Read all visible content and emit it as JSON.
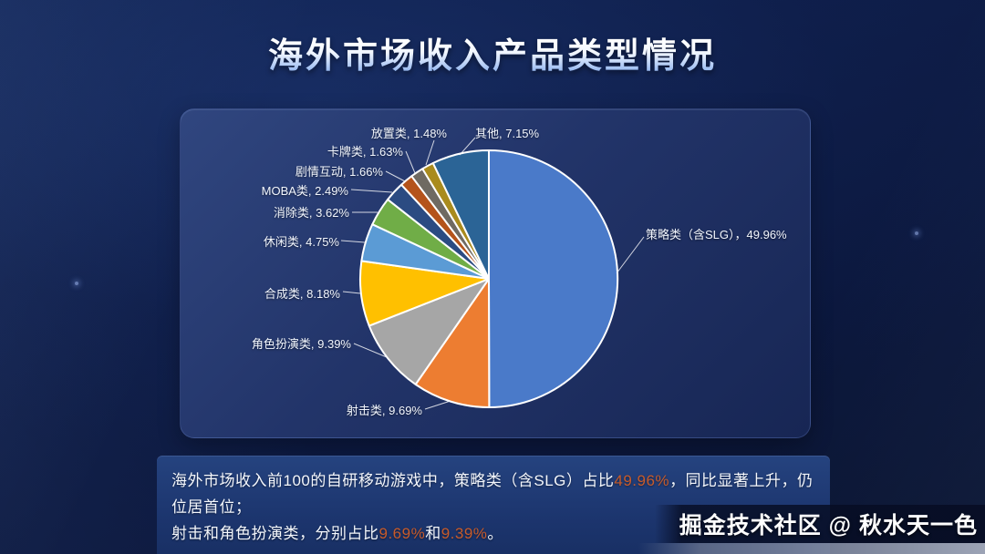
{
  "page": {
    "title": "海外市场收入产品类型情况",
    "watermark": "掘金技术社区 @ 秋水天一色"
  },
  "chart_data": {
    "type": "pie",
    "title": "海外市场收入产品类型情况",
    "values_are_percent": true,
    "start_angle": "top",
    "direction": "clockwise",
    "legend_position": "none",
    "slice_border_color": "#ffffff",
    "slices": [
      {
        "key": "strategy-slg",
        "label": "策略类（含SLG）",
        "value": 49.96,
        "color": "#4A7AC9",
        "display_label": "策略类（含SLG），49.96%"
      },
      {
        "key": "shooter",
        "label": "射击类",
        "value": 9.69,
        "color": "#ED7D31",
        "display_label": "射击类, 9.69%"
      },
      {
        "key": "rpg",
        "label": "角色扮演类",
        "value": 9.39,
        "color": "#A6A6A6",
        "display_label": "角色扮演类, 9.39%"
      },
      {
        "key": "merge",
        "label": "合成类",
        "value": 8.18,
        "color": "#FFC000",
        "display_label": "合成类, 8.18%"
      },
      {
        "key": "casual",
        "label": "休闲类",
        "value": 4.75,
        "color": "#5B9BD5",
        "display_label": "休闲类, 4.75%"
      },
      {
        "key": "match3",
        "label": "消除类",
        "value": 3.62,
        "color": "#70AD47",
        "display_label": "消除类, 3.62%"
      },
      {
        "key": "moba",
        "label": "MOBA类",
        "value": 2.49,
        "color": "#2B4B82",
        "display_label": "MOBA类, 2.49%"
      },
      {
        "key": "interactive-story",
        "label": "剧情互动",
        "value": 1.66,
        "color": "#B4531B",
        "display_label": "剧情互动, 1.66%"
      },
      {
        "key": "card",
        "label": "卡牌类",
        "value": 1.63,
        "color": "#6F6A62",
        "display_label": "卡牌类, 1.63%"
      },
      {
        "key": "idle",
        "label": "放置类",
        "value": 1.48,
        "color": "#A98B1E",
        "display_label": "放置类, 1.48%"
      },
      {
        "key": "others",
        "label": "其他",
        "value": 7.15,
        "color": "#2B6496",
        "display_label": "其他, 7.15%"
      }
    ]
  },
  "caption": {
    "highlight_color": "#C75B2B",
    "lines": [
      [
        {
          "t": "海外市场收入前100的自研移动游戏中，策略类（含SLG）占比",
          "h": false
        },
        {
          "t": "49.96%",
          "h": true
        },
        {
          "t": "，同比显著上升，仍位居首位；",
          "h": false
        }
      ],
      [
        {
          "t": "射击和角色扮演类，分别占比",
          "h": false
        },
        {
          "t": "9.69%",
          "h": true
        },
        {
          "t": "和",
          "h": false
        },
        {
          "t": "9.39%",
          "h": true
        },
        {
          "t": "。",
          "h": false
        }
      ]
    ]
  }
}
